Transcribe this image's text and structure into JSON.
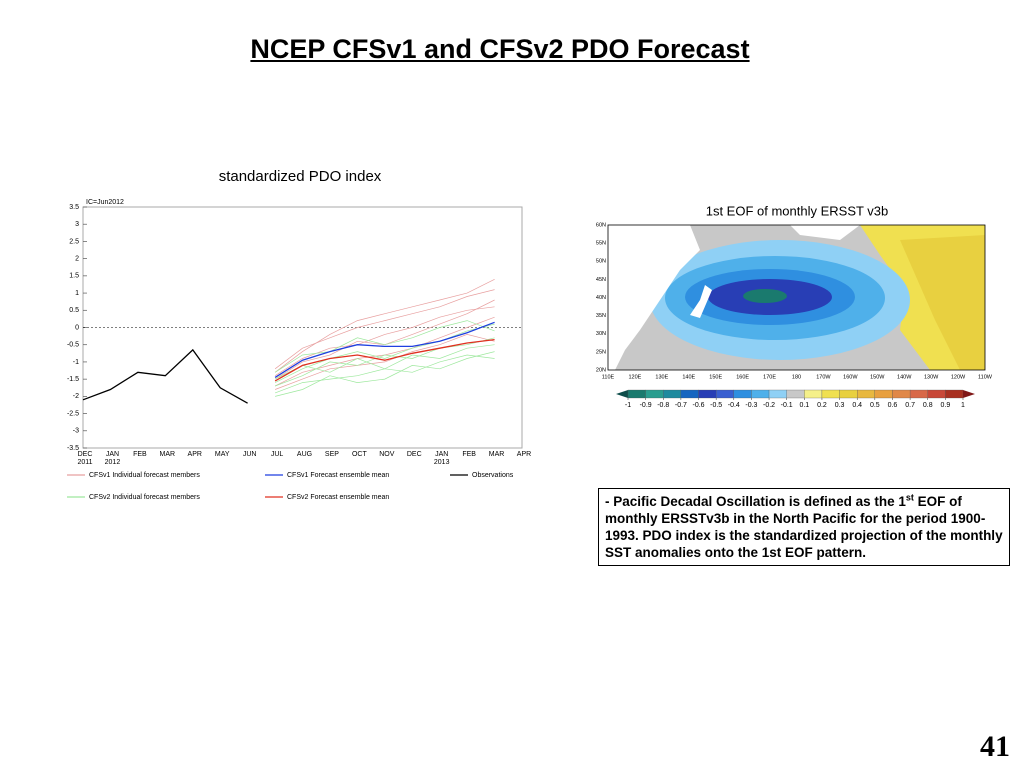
{
  "slide": {
    "title": "NCEP CFSv1 and CFSv2 PDO Forecast",
    "page_number": "41"
  },
  "chart_data": {
    "type": "line",
    "title": "standardized PDO index",
    "annotation": "IC=Jun2012",
    "categories": [
      "DEC",
      "JAN",
      "FEB",
      "MAR",
      "APR",
      "MAY",
      "JUN",
      "JUL",
      "AUG",
      "SEP",
      "OCT",
      "NOV",
      "DEC",
      "JAN",
      "FEB",
      "MAR",
      "APR"
    ],
    "year_labels": [
      {
        "category": 0,
        "label": "2011"
      },
      {
        "category": 1,
        "label": "2012"
      },
      {
        "category": 13,
        "label": "2013"
      }
    ],
    "ylim": [
      -3.5,
      3.5
    ],
    "yticks": [
      -3.5,
      -3,
      -2.5,
      -2,
      -1.5,
      -1,
      -0.5,
      0,
      0.5,
      1,
      1.5,
      2,
      2.5,
      3,
      3.5
    ],
    "hline": 0,
    "series": [
      {
        "name": "CFSv1 Individual forecast members",
        "color": "#e8a0a0",
        "members": [
          [
            null,
            null,
            null,
            null,
            null,
            null,
            null,
            -1.2,
            -0.6,
            -0.3,
            0.0,
            0.2,
            0.4,
            0.6,
            0.9,
            1.1,
            null
          ],
          [
            null,
            null,
            null,
            null,
            null,
            null,
            null,
            -1.5,
            -1.0,
            -0.8,
            -0.4,
            -0.5,
            -0.2,
            0.1,
            0.4,
            0.8,
            null
          ],
          [
            null,
            null,
            null,
            null,
            null,
            null,
            null,
            -1.7,
            -1.3,
            -1.1,
            -0.9,
            -0.8,
            -0.6,
            -0.3,
            0.0,
            0.3,
            null
          ],
          [
            null,
            null,
            null,
            null,
            null,
            null,
            null,
            -1.3,
            -0.7,
            -0.2,
            0.2,
            0.4,
            0.6,
            0.8,
            1.0,
            1.4,
            null
          ],
          [
            null,
            null,
            null,
            null,
            null,
            null,
            null,
            -1.8,
            -1.5,
            -1.2,
            -1.1,
            -1.0,
            -0.7,
            -0.5,
            -0.2,
            -0.4,
            null
          ],
          [
            null,
            null,
            null,
            null,
            null,
            null,
            null,
            -1.4,
            -0.9,
            -0.6,
            -0.5,
            -0.2,
            0.0,
            0.3,
            0.5,
            0.6,
            null
          ]
        ]
      },
      {
        "name": "CFSv1 Forecast ensemble mean",
        "color": "#1f3fe0",
        "values": [
          null,
          null,
          null,
          null,
          null,
          null,
          null,
          -1.45,
          -0.95,
          -0.7,
          -0.5,
          -0.55,
          -0.55,
          -0.4,
          -0.15,
          0.15,
          null
        ]
      },
      {
        "name": "Observations",
        "color": "#000000",
        "values": [
          -2.1,
          -1.8,
          -1.3,
          -1.4,
          -0.65,
          -1.75,
          -2.2,
          null,
          null,
          null,
          null,
          null,
          null,
          null,
          null,
          null,
          null
        ]
      },
      {
        "name": "CFSv2 Individual forecast members",
        "color": "#9ee89e",
        "members": [
          [
            null,
            null,
            null,
            null,
            null,
            null,
            null,
            -1.9,
            -1.6,
            -1.5,
            -1.4,
            -1.2,
            -1.3,
            -1.0,
            -0.8,
            -0.9,
            null
          ],
          [
            null,
            null,
            null,
            null,
            null,
            null,
            null,
            -1.6,
            -1.2,
            -0.9,
            -0.7,
            -0.9,
            -0.6,
            -0.4,
            -0.1,
            0.1,
            null
          ],
          [
            null,
            null,
            null,
            null,
            null,
            null,
            null,
            -2.0,
            -1.8,
            -1.4,
            -1.6,
            -1.5,
            -1.1,
            -1.2,
            -0.9,
            -0.7,
            null
          ],
          [
            null,
            null,
            null,
            null,
            null,
            null,
            null,
            -1.3,
            -0.8,
            -0.7,
            -0.3,
            -0.5,
            -0.3,
            0.0,
            0.2,
            -0.1,
            null
          ],
          [
            null,
            null,
            null,
            null,
            null,
            null,
            null,
            -1.7,
            -1.4,
            -1.0,
            -1.1,
            -0.8,
            -0.9,
            -0.6,
            -0.5,
            -0.3,
            null
          ],
          [
            null,
            null,
            null,
            null,
            null,
            null,
            null,
            -1.5,
            -1.1,
            -1.3,
            -0.9,
            -1.2,
            -0.8,
            -0.9,
            -0.6,
            -0.5,
            null
          ]
        ]
      },
      {
        "name": "CFSv2 Forecast ensemble mean",
        "color": "#e03020",
        "values": [
          null,
          null,
          null,
          null,
          null,
          null,
          null,
          -1.55,
          -1.1,
          -0.9,
          -0.8,
          -0.95,
          -0.75,
          -0.6,
          -0.45,
          -0.35,
          null
        ]
      }
    ]
  },
  "eof_map": {
    "title": "1st EOF of monthly ERSST v3b",
    "lat_labels": [
      "60N",
      "55N",
      "50N",
      "45N",
      "40N",
      "35N",
      "30N",
      "25N",
      "20N"
    ],
    "lon_labels": [
      "110E",
      "120E",
      "130E",
      "140E",
      "150E",
      "160E",
      "170E",
      "180",
      "170W",
      "160W",
      "150W",
      "140W",
      "130W",
      "120W",
      "110W"
    ],
    "colorbar": {
      "ticks": [
        -1,
        -0.9,
        -0.8,
        -0.7,
        -0.6,
        -0.5,
        -0.4,
        -0.3,
        -0.2,
        -0.1,
        0.1,
        0.2,
        0.3,
        0.4,
        0.5,
        0.6,
        0.7,
        0.8,
        0.9,
        1
      ],
      "colors": [
        "#0e4d4a",
        "#1a7a6e",
        "#2a9d8f",
        "#1f8a9e",
        "#1565c0",
        "#283eb5",
        "#3a5fd0",
        "#2f8fe0",
        "#4fb0ea",
        "#8fd0f5",
        "#c8c8c8",
        "#f5f08a",
        "#f0e050",
        "#e8d040",
        "#e8b840",
        "#e8a040",
        "#e08848",
        "#d86848",
        "#c84838",
        "#a83020",
        "#801818"
      ]
    }
  },
  "note": {
    "prefix": "- ",
    "lead": "Pacific Decadal Oscillation is defined as the 1",
    "sup": "st",
    "rest": " EOF of monthly ERSSTv3b in the North Pacific for the period 1900-1993. PDO index is the standardized projection of the monthly SST anomalies onto  the 1st EOF pattern."
  }
}
